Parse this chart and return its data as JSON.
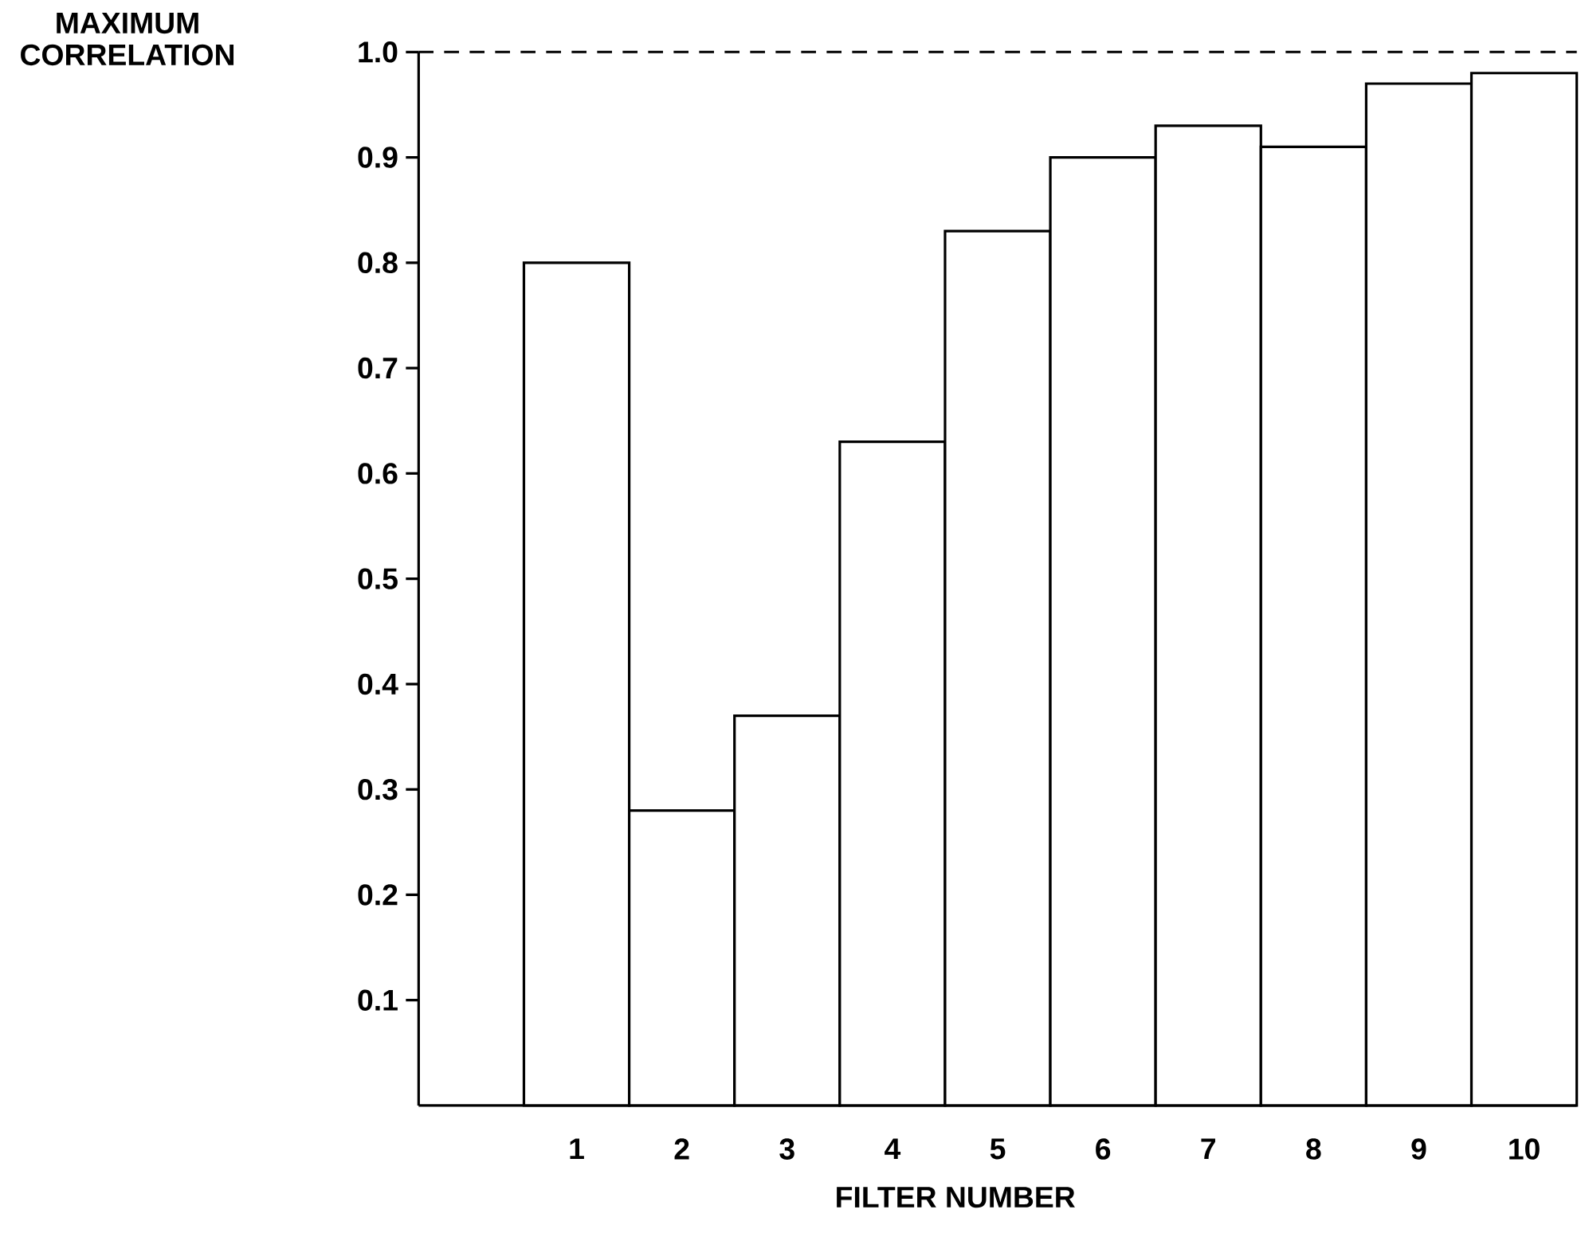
{
  "chart_data": {
    "type": "bar",
    "xlabel": "FILTER NUMBER",
    "ylabel": "MAXIMUM CORRELATION",
    "categories": [
      "1",
      "2",
      "3",
      "4",
      "5",
      "6",
      "7",
      "8",
      "9",
      "10"
    ],
    "values": [
      0.8,
      0.28,
      0.37,
      0.63,
      0.83,
      0.9,
      0.93,
      0.91,
      0.97,
      0.98
    ],
    "color": "#ffffff",
    "ylim": [
      0,
      1
    ],
    "yticks": [
      0.1,
      0.2,
      0.3,
      0.4,
      0.5,
      0.6,
      0.7,
      0.8,
      0.9,
      {
        "value": 1,
        "label": "1.0"
      }
    ],
    "ref_lines": [
      {
        "axis": "y",
        "value": 1,
        "line_style": "dashed"
      }
    ]
  }
}
